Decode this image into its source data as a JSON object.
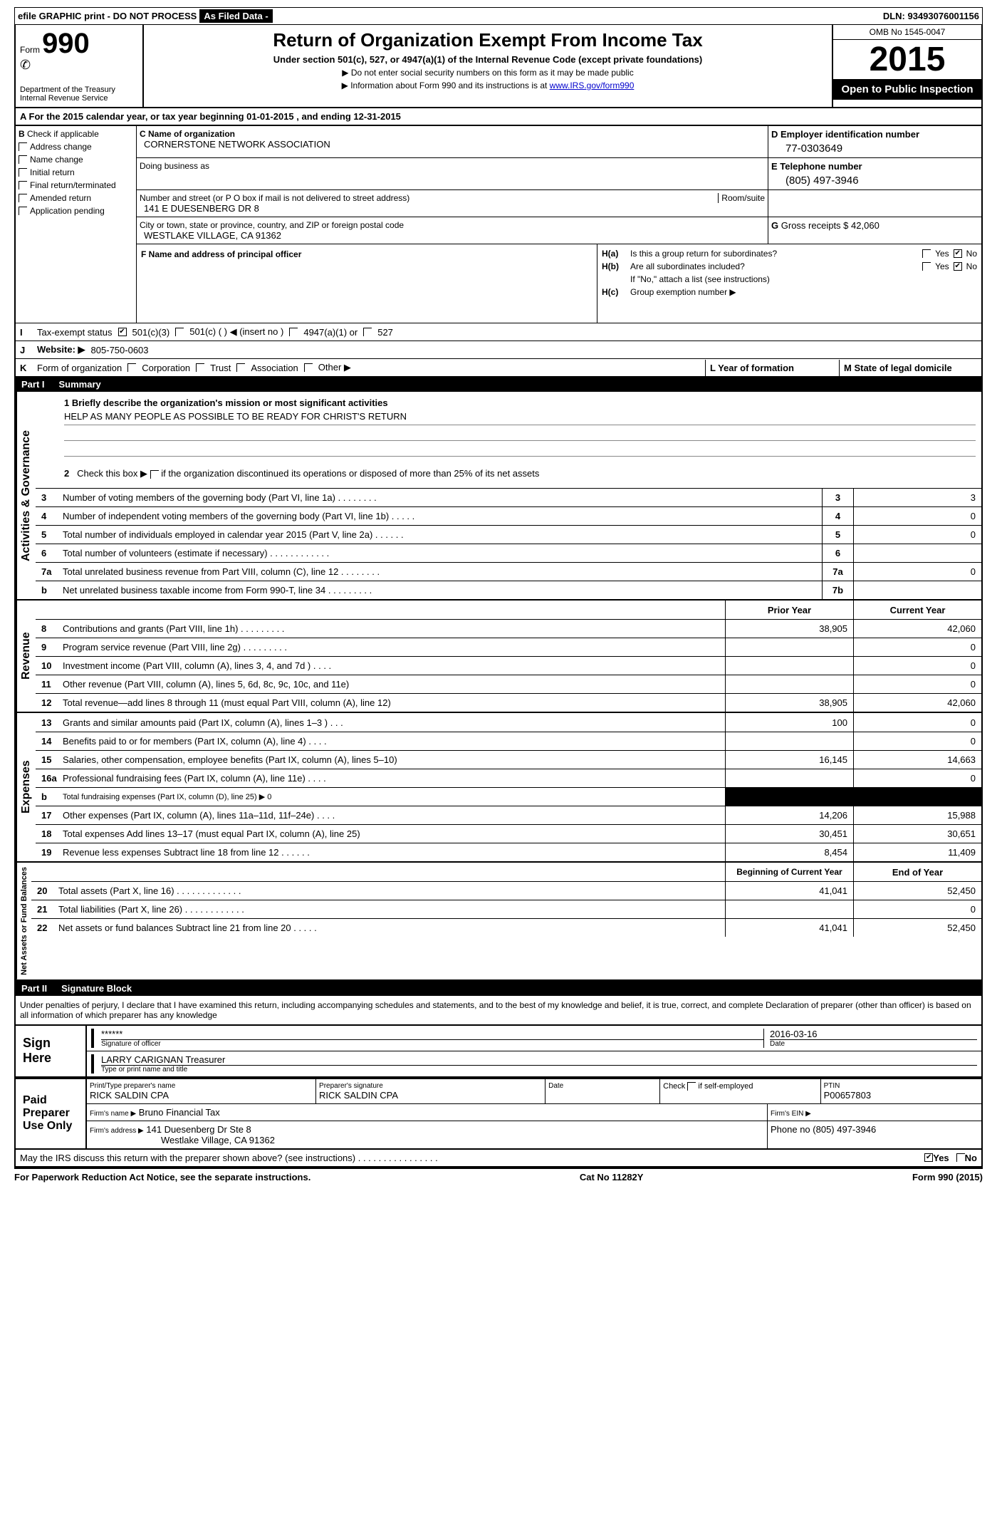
{
  "topBar": {
    "efile": "efile GRAPHIC print - DO NOT PROCESS",
    "asFiled": "As Filed Data -",
    "dlnLabel": "DLN:",
    "dln": "93493076001156"
  },
  "header": {
    "formPrefix": "Form",
    "formNum": "990",
    "dept": "Department of the Treasury",
    "irs": "Internal Revenue Service",
    "title": "Return of Organization Exempt From Income Tax",
    "sub1": "Under section 501(c), 527, or 4947(a)(1) of the Internal Revenue Code (except private foundations)",
    "sub2a": "▶ Do not enter social security numbers on this form as it may be made public",
    "sub2b": "▶ Information about Form 990 and its instructions is at ",
    "irsLink": "www.IRS.gov/form990",
    "omb": "OMB No 1545-0047",
    "year": "2015",
    "openPub": "Open to Public Inspection"
  },
  "A": {
    "label": "A  For the 2015 calendar year, or tax year beginning 01-01-2015    , and ending 12-31-2015"
  },
  "B": {
    "label": "B",
    "checkIf": "Check if applicable",
    "items": [
      "Address change",
      "Name change",
      "Initial return",
      "Final return/terminated",
      "Amended return",
      "Application pending"
    ]
  },
  "C": {
    "nameHdr": "C Name of organization",
    "name": "CORNERSTONE NETWORK ASSOCIATION",
    "dbaHdr": "Doing business as",
    "dba": "",
    "addrHdr": "Number and street (or P O  box if mail is not delivered to street address)",
    "roomHdr": "Room/suite",
    "addr": "141 E DUESENBERG DR 8",
    "cityHdr": "City or town, state or province, country, and ZIP or foreign postal code",
    "city": "WESTLAKE VILLAGE, CA  91362"
  },
  "D": {
    "hdr": "D Employer identification number",
    "val": "77-0303649"
  },
  "E": {
    "hdr": "E Telephone number",
    "val": "(805) 497-3946"
  },
  "G": {
    "hdr": "G",
    "txt": "Gross receipts $",
    "val": "42,060"
  },
  "F": {
    "hdr": "F    Name and address of principal officer"
  },
  "H": {
    "a": {
      "lbl": "H(a)",
      "txt": "Is this a group return for subordinates?",
      "yes": "Yes",
      "no": "No",
      "noChecked": true
    },
    "b": {
      "lbl": "H(b)",
      "txt": "Are all subordinates included?",
      "yes": "Yes",
      "no": "No",
      "noChecked": true
    },
    "attach": "If \"No,\" attach a list  (see instructions)",
    "c": {
      "lbl": "H(c)",
      "txt": "Group exemption number ▶"
    }
  },
  "I": {
    "lead": "I",
    "label": "Tax-exempt status",
    "opts": [
      "501(c)(3)",
      "501(c) (  ) ◀ (insert no )",
      "4947(a)(1) or",
      "527"
    ],
    "checked": 0
  },
  "J": {
    "lead": "J",
    "label": "Website: ▶",
    "val": "805-750-0603"
  },
  "K": {
    "lead": "K",
    "label": "Form of organization",
    "opts": [
      "Corporation",
      "Trust",
      "Association",
      "Other ▶"
    ],
    "L": "L Year of formation",
    "M": "M State of legal domicile"
  },
  "partI": {
    "num": "Part I",
    "title": "Summary"
  },
  "mission": {
    "q1": "1 Briefly describe the organization's mission or most significant activities",
    "ans": "HELP AS MANY PEOPLE AS POSSIBLE TO BE READY FOR CHRIST'S RETURN",
    "q2": "2  Check this box ▶        if the organization discontinued its operations or disposed of more than 25% of its net assets"
  },
  "gov": {
    "label": "Activities & Governance",
    "rows": [
      {
        "n": "3",
        "t": "Number of voting members of the governing body (Part VI, line 1a)  .    .    .    .    .    .    .    .",
        "c": "3",
        "v": "3"
      },
      {
        "n": "4",
        "t": "Number of independent voting members of the governing body (Part VI, line 1b)   .    .    .    .    .",
        "c": "4",
        "v": "0"
      },
      {
        "n": "5",
        "t": "Total number of individuals employed in calendar year 2015 (Part V, line 2a)   .    .    .    .    .    .",
        "c": "5",
        "v": "0"
      },
      {
        "n": "6",
        "t": "Total number of volunteers (estimate if necessary)   .    .    .    .    .    .    .    .    .    .    .    .",
        "c": "6",
        "v": ""
      },
      {
        "n": "7a",
        "t": "Total unrelated business revenue from Part VIII, column (C), line 12   .    .    .    .    .    .    .    .",
        "c": "7a",
        "v": "0"
      },
      {
        "n": "b",
        "t": "Net unrelated business taxable income from Form 990-T, line 34  .    .    .    .    .    .    .    .    .",
        "c": "7b",
        "v": ""
      }
    ]
  },
  "revHdr": {
    "py": "Prior Year",
    "cy": "Current Year"
  },
  "rev": {
    "label": "Revenue",
    "rows": [
      {
        "n": "8",
        "t": "Contributions and grants (Part VIII, line 1h)    .    .    .    .    .    .    .    .    .",
        "py": "38,905",
        "cy": "42,060"
      },
      {
        "n": "9",
        "t": "Program service revenue (Part VIII, line 2g)   .    .    .    .    .    .    .    .    .",
        "py": "",
        "cy": "0"
      },
      {
        "n": "10",
        "t": "Investment income (Part VIII, column (A), lines 3, 4, and 7d )   .    .    .    .",
        "py": "",
        "cy": "0"
      },
      {
        "n": "11",
        "t": "Other revenue (Part VIII, column (A), lines 5, 6d, 8c, 9c, 10c, and 11e)",
        "py": "",
        "cy": "0"
      },
      {
        "n": "12",
        "t": "Total revenue—add lines 8 through 11 (must equal Part VIII, column (A), line 12)",
        "py": "38,905",
        "cy": "42,060"
      }
    ]
  },
  "exp": {
    "label": "Expenses",
    "rows": [
      {
        "n": "13",
        "t": "Grants and similar amounts paid (Part IX, column (A), lines 1–3 )   .    .    .",
        "py": "100",
        "cy": "0"
      },
      {
        "n": "14",
        "t": "Benefits paid to or for members (Part IX, column (A), line 4)   .    .    .    .",
        "py": "",
        "cy": "0"
      },
      {
        "n": "15",
        "t": "Salaries, other compensation, employee benefits (Part IX, column (A), lines 5–10)",
        "py": "16,145",
        "cy": "14,663"
      },
      {
        "n": "16a",
        "t": "Professional fundraising fees (Part IX, column (A), line 11e)  .    .    .    .",
        "py": "",
        "cy": "0"
      },
      {
        "n": "b",
        "t": "Total fundraising expenses (Part IX, column (D), line 25) ▶ 0",
        "py": "BLACK",
        "cy": "BLACK"
      },
      {
        "n": "17",
        "t": "Other expenses (Part IX, column (A), lines 11a–11d, 11f–24e)   .    .    .    .",
        "py": "14,206",
        "cy": "15,988"
      },
      {
        "n": "18",
        "t": "Total expenses  Add lines 13–17 (must equal Part IX, column (A), line 25)",
        "py": "30,451",
        "cy": "30,651"
      },
      {
        "n": "19",
        "t": "Revenue less expenses  Subtract line 18 from line 12   .    .    .    .    .    .",
        "py": "8,454",
        "cy": "11,409"
      }
    ]
  },
  "naHdr": {
    "py": "Beginning of Current Year",
    "cy": "End of Year"
  },
  "na": {
    "label": "Net Assets or Fund Balances",
    "rows": [
      {
        "n": "20",
        "t": "Total assets (Part X, line 16)    .    .    .    .    .    .    .    .    .    .    .    .    .",
        "py": "41,041",
        "cy": "52,450"
      },
      {
        "n": "21",
        "t": "Total liabilities (Part X, line 26)   .    .    .    .    .    .    .    .    .    .    .    .",
        "py": "",
        "cy": "0"
      },
      {
        "n": "22",
        "t": "Net assets or fund balances  Subtract line 21 from line 20   .    .    .    .    .",
        "py": "41,041",
        "cy": "52,450"
      }
    ]
  },
  "partII": {
    "num": "Part II",
    "title": "Signature Block"
  },
  "sig": {
    "decl": "Under penalties of perjury, I declare that I have examined this return, including accompanying schedules and statements, and to the best of my knowledge and belief, it is true, correct, and complete  Declaration of preparer (other than officer) is based on all information of which preparer has any knowledge",
    "signHere": "Sign Here",
    "stars": "******",
    "sigOfOfficer": "Signature of officer",
    "date": "2016-03-16",
    "dateLbl": "Date",
    "name": "LARRY CARIGNAN Treasurer",
    "typeName": "Type or print name and title"
  },
  "paid": {
    "label": "Paid Preparer Use Only",
    "h1": "Print/Type preparer's name",
    "v1": "RICK SALDIN CPA",
    "h2": "Preparer's signature",
    "v2": "RICK SALDIN CPA",
    "h3": "Date",
    "v3": "",
    "h4": "Check          if self-employed",
    "h5": "PTIN",
    "v5": "P00657803",
    "firmName": "Firm's name     ▶",
    "firmNameV": "Bruno Financial Tax",
    "firmEIN": "Firm's EIN ▶",
    "firmAddr": "Firm's address ▶",
    "firmAddrV": "141 Duesenberg Dr Ste 8",
    "firmAddr2": "Westlake Village, CA  91362",
    "phone": "Phone no  (805) 497-3946"
  },
  "discuss": {
    "txt": "May the IRS discuss this return with the preparer shown above? (see instructions)    .    .    .    .    .    .    .    .    .    .    .    .    .    .    .    .",
    "yes": "Yes",
    "no": "No"
  },
  "footer": {
    "left": "For Paperwork Reduction Act Notice, see the separate instructions.",
    "mid": "Cat No  11282Y",
    "right": "Form 990 (2015)"
  }
}
